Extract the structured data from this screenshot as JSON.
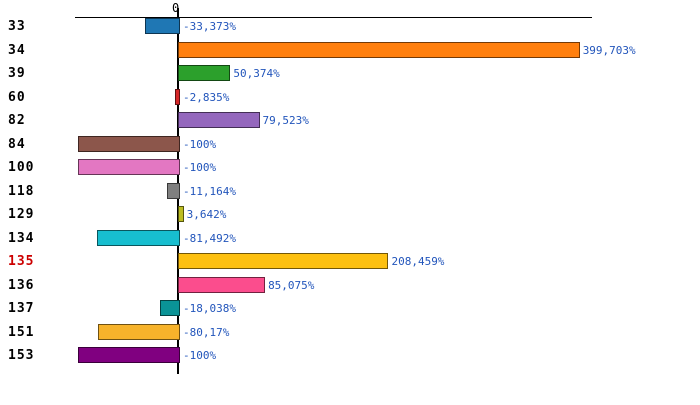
{
  "axis": {
    "zero_label": "0"
  },
  "styles": {
    "value_text_color": "#2255bb",
    "highlight_category_color": "#cc0000",
    "axis_color": "#000000"
  },
  "chart_data": {
    "type": "bar",
    "orientation": "horizontal",
    "title": "",
    "xlabel": "",
    "ylabel": "",
    "xlim": [
      -100,
      400
    ],
    "grid": false,
    "legend": false,
    "categories": [
      "33",
      "34",
      "39",
      "60",
      "82",
      "84",
      "100",
      "118",
      "129",
      "134",
      "135",
      "136",
      "137",
      "151",
      "153"
    ],
    "values": [
      -33.373,
      399.703,
      50.374,
      -2.835,
      79.523,
      -100,
      -100,
      -11.164,
      3.642,
      -81.492,
      208.459,
      85.075,
      -18.038,
      -80.17,
      -100
    ],
    "value_labels": [
      "-33,373%",
      "399,703%",
      "50,374%",
      "-2,835%",
      "79,523%",
      "-100%",
      "-100%",
      "-11,164%",
      "3,642%",
      "-81,492%",
      "208,459%",
      "85,075%",
      "-18,038%",
      "-80,17%",
      "-100%"
    ],
    "bar_colors": [
      "#1f77b4",
      "#ff7f0e",
      "#2ca02c",
      "#d62728",
      "#9467bd",
      "#8c564b",
      "#e377c2",
      "#7f7f7f",
      "#bcbd22",
      "#17becf",
      "#fdc010",
      "#fb4d8d",
      "#0a9396",
      "#f7b32b",
      "#800080"
    ],
    "category_label_colors": [
      "#000000",
      "#000000",
      "#000000",
      "#000000",
      "#000000",
      "#000000",
      "#000000",
      "#000000",
      "#000000",
      "#000000",
      "#cc0000",
      "#000000",
      "#000000",
      "#000000",
      "#000000"
    ]
  }
}
